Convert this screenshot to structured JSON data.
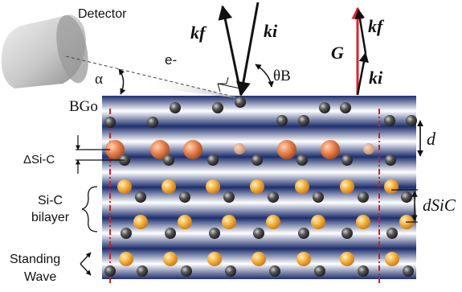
{
  "labels": {
    "detector": "Detector",
    "electron": "e-",
    "alpha": "α",
    "theta_b": "θB",
    "bg": "BGo",
    "kf_left": "kf",
    "ki_left": "ki",
    "G": "G",
    "kf_right": "kf",
    "ki_right": "ki",
    "d": "d",
    "delta_sic": "ΔSi-C",
    "sic_bilayer_line1": "Si-C",
    "sic_bilayer_line2": "bilayer",
    "d_sic": "dSiC",
    "standing_line1": "Standing",
    "standing_line2": "Wave"
  },
  "colors": {
    "band_dark": "#1e2f6e",
    "band_light": "#ffffff",
    "atom_dark": "#4a4a4a",
    "atom_orange": "#e8834f",
    "atom_yellow": "#f4b23c",
    "dashed_red": "#d01e2a",
    "vector_G": "#d7262e"
  }
}
